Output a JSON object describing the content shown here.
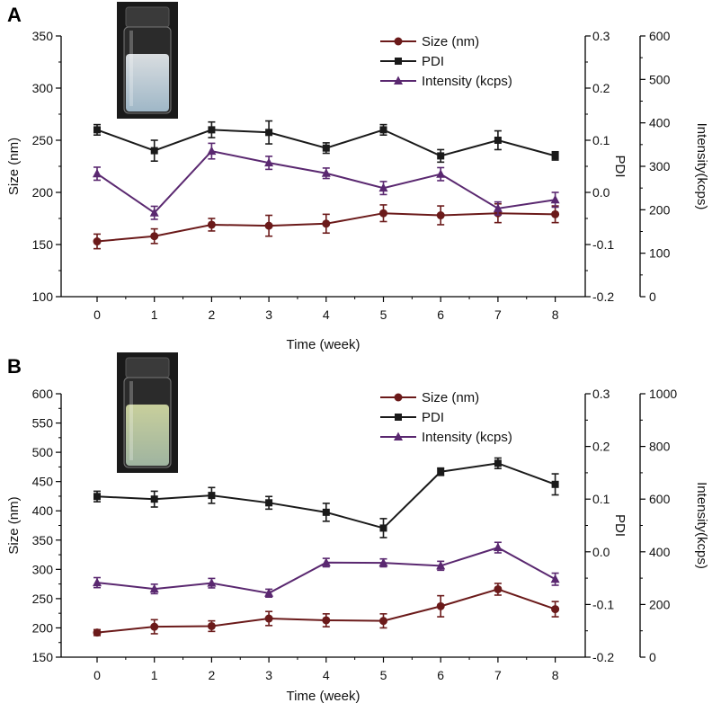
{
  "chart_data": [
    {
      "type": "line",
      "panel_label": "A",
      "xlabel": "Time (week)",
      "x": [
        0,
        1,
        2,
        3,
        4,
        5,
        6,
        7,
        8
      ],
      "x_ticks": [
        "0",
        "1",
        "2",
        "3",
        "4",
        "5",
        "6",
        "7",
        "8"
      ],
      "axes": {
        "size": {
          "label": "Size (nm)",
          "range": [
            100,
            350
          ],
          "ticks": [
            "100",
            "150",
            "200",
            "250",
            "300",
            "350"
          ]
        },
        "pdi": {
          "label": "PDI",
          "range": [
            -0.2,
            0.3
          ],
          "ticks": [
            "-0.2",
            "-0.1",
            "0.0",
            "0.1",
            "0.2",
            "0.3"
          ]
        },
        "intensity": {
          "label": "Intensity(kcps)",
          "range": [
            0,
            600
          ],
          "ticks": [
            "0",
            "100",
            "200",
            "300",
            "400",
            "500",
            "600"
          ]
        }
      },
      "series": [
        {
          "name": "Size (nm)",
          "axis": "size",
          "color": "#6b1a1a",
          "marker": "circle",
          "values": [
            153,
            158,
            169,
            168,
            170,
            180,
            178,
            180,
            179
          ],
          "errors": [
            7,
            7,
            6,
            10,
            9,
            8,
            9,
            9,
            8
          ]
        },
        {
          "name": "PDI",
          "axis": "pdi",
          "color": "#1a1a1a",
          "marker": "square",
          "values": [
            0.12,
            0.08,
            0.12,
            0.115,
            0.085,
            0.12,
            0.07,
            0.1,
            0.07
          ],
          "errors": [
            0.01,
            0.02,
            0.015,
            0.022,
            0.01,
            0.01,
            0.012,
            0.018,
            0.008
          ]
        },
        {
          "name": "Intensity (kcps)",
          "axis": "intensity",
          "color": "#5a2870",
          "marker": "triangle",
          "values": [
            283,
            193,
            335,
            308,
            284,
            250,
            282,
            203,
            223
          ],
          "errors": [
            15,
            15,
            18,
            15,
            12,
            15,
            15,
            15,
            17
          ]
        }
      ]
    },
    {
      "type": "line",
      "panel_label": "B",
      "xlabel": "Time (week)",
      "x": [
        0,
        1,
        2,
        3,
        4,
        5,
        6,
        7,
        8
      ],
      "x_ticks": [
        "0",
        "1",
        "2",
        "3",
        "4",
        "5",
        "6",
        "7",
        "8"
      ],
      "axes": {
        "size": {
          "label": "Size (nm)",
          "range": [
            150,
            600
          ],
          "ticks": [
            "150",
            "200",
            "250",
            "300",
            "350",
            "400",
            "450",
            "500",
            "550",
            "600"
          ]
        },
        "pdi": {
          "label": "PDI",
          "range": [
            -0.2,
            0.3
          ],
          "ticks": [
            "-0.2",
            "-0.1",
            "0.0",
            "0.1",
            "0.2",
            "0.3"
          ]
        },
        "intensity": {
          "label": "Intensity(kcps)",
          "range": [
            0,
            1000
          ],
          "ticks": [
            "0",
            "200",
            "400",
            "600",
            "800",
            "1000"
          ]
        }
      },
      "series": [
        {
          "name": "Size (nm)",
          "axis": "size",
          "color": "#6b1a1a",
          "marker": "circle",
          "values": [
            192,
            202,
            203,
            216,
            213,
            212,
            237,
            266,
            232
          ],
          "errors": [
            5,
            12,
            9,
            12,
            11,
            12,
            18,
            10,
            13
          ]
        },
        {
          "name": "PDI",
          "axis": "pdi",
          "color": "#1a1a1a",
          "marker": "square",
          "values": [
            0.105,
            0.1,
            0.107,
            0.093,
            0.075,
            0.045,
            0.152,
            0.168,
            0.128
          ],
          "errors": [
            0.01,
            0.015,
            0.015,
            0.012,
            0.017,
            0.018,
            0.007,
            0.01,
            0.02
          ]
        },
        {
          "name": "Intensity (kcps)",
          "axis": "intensity",
          "color": "#5a2870",
          "marker": "triangle",
          "values": [
            283,
            259,
            281,
            243,
            359,
            358,
            347,
            416,
            296
          ],
          "errors": [
            19,
            18,
            18,
            15,
            16,
            15,
            17,
            20,
            23
          ]
        }
      ]
    }
  ]
}
